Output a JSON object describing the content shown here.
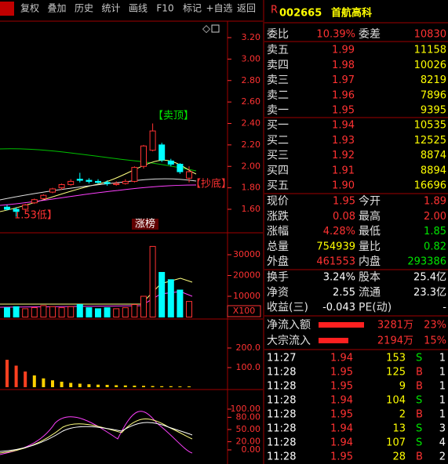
{
  "toolbar": [
    "复权",
    "叠加",
    "历史",
    "统计",
    "画线",
    "F10",
    "标记",
    "+自选",
    "返回"
  ],
  "chart": {
    "price_ticks": [
      {
        "value": 3.2,
        "label": "3.20"
      },
      {
        "value": 3.0,
        "label": "3.00"
      },
      {
        "value": 2.8,
        "label": "2.80"
      },
      {
        "value": 2.6,
        "label": "2.60"
      },
      {
        "value": 2.4,
        "label": "2.40"
      },
      {
        "value": 2.2,
        "label": "2.20"
      },
      {
        "value": 2.0,
        "label": "2.00"
      },
      {
        "value": 1.8,
        "label": "1.80"
      },
      {
        "value": 1.6,
        "label": "1.60"
      }
    ],
    "sell_top": "【卖顶】",
    "buy_bottom": "【抄底】",
    "low_label": "1.53低】",
    "badge": "涨榜",
    "candles": [
      {
        "o": 1.62,
        "h": 1.64,
        "l": 1.59,
        "c": 1.6
      },
      {
        "o": 1.6,
        "h": 1.62,
        "l": 1.53,
        "c": 1.58
      },
      {
        "o": 1.6,
        "h": 1.65,
        "l": 1.59,
        "c": 1.64
      },
      {
        "o": 1.66,
        "h": 1.7,
        "l": 1.65,
        "c": 1.69
      },
      {
        "o": 1.7,
        "h": 1.74,
        "l": 1.69,
        "c": 1.73
      },
      {
        "o": 1.76,
        "h": 1.8,
        "l": 1.75,
        "c": 1.79
      },
      {
        "o": 1.8,
        "h": 1.84,
        "l": 1.78,
        "c": 1.83
      },
      {
        "o": 1.83,
        "h": 1.88,
        "l": 1.82,
        "c": 1.86
      },
      {
        "o": 1.88,
        "h": 1.94,
        "l": 1.85,
        "c": 1.87
      },
      {
        "o": 1.87,
        "h": 1.89,
        "l": 1.84,
        "c": 1.86
      },
      {
        "o": 1.86,
        "h": 1.88,
        "l": 1.84,
        "c": 1.85
      },
      {
        "o": 1.85,
        "h": 1.87,
        "l": 1.82,
        "c": 1.84
      },
      {
        "o": 1.83,
        "h": 1.86,
        "l": 1.82,
        "c": 1.84
      },
      {
        "o": 1.84,
        "h": 1.88,
        "l": 1.83,
        "c": 1.86
      },
      {
        "o": 1.86,
        "h": 2.0,
        "l": 1.85,
        "c": 1.99
      },
      {
        "o": 2.0,
        "h": 2.2,
        "l": 1.98,
        "c": 2.19
      },
      {
        "o": 2.15,
        "h": 2.4,
        "l": 2.14,
        "c": 2.33
      },
      {
        "o": 2.2,
        "h": 2.22,
        "l": 2.04,
        "c": 2.06
      },
      {
        "o": 2.05,
        "h": 2.07,
        "l": 2.0,
        "c": 2.02
      },
      {
        "o": 2.02,
        "h": 2.03,
        "l": 1.93,
        "c": 1.95
      },
      {
        "o": 1.89,
        "h": 2.0,
        "l": 1.85,
        "c": 1.95
      }
    ],
    "volume": [
      4500,
      5000,
      4000,
      4500,
      5500,
      5000,
      4500,
      5000,
      6000,
      4500,
      4000,
      4500,
      4000,
      4500,
      6000,
      10000,
      34000,
      21500,
      18000,
      13000,
      7500
    ],
    "volume_ticks": [
      30000,
      20000,
      10000
    ],
    "volume_unit": "X100",
    "indicator": [
      140,
      110,
      80,
      60,
      45,
      35,
      28,
      22,
      18,
      15,
      13,
      12,
      10,
      9,
      8,
      7,
      6,
      5,
      5,
      4,
      4
    ],
    "indicator_ticks": [
      {
        "value": 200,
        "label": "200.0"
      },
      {
        "value": 100,
        "label": "100.0"
      }
    ],
    "kdj_ticks": [
      {
        "value": 100,
        "label": "100.00"
      },
      {
        "value": 80,
        "label": "80.00"
      },
      {
        "value": 50,
        "label": "50.00"
      },
      {
        "value": 20,
        "label": "20.00"
      },
      {
        "value": 0,
        "label": "0.00"
      }
    ]
  },
  "quote": {
    "marker": "R",
    "code": "002665",
    "name": "首航高科",
    "ratio": [
      "委比",
      "10.39%",
      "委差",
      "10830"
    ],
    "sell": [
      [
        "卖五",
        "1.99",
        "11158"
      ],
      [
        "卖四",
        "1.98",
        "10026"
      ],
      [
        "卖三",
        "1.97",
        "8219"
      ],
      [
        "卖二",
        "1.96",
        "7896"
      ],
      [
        "卖一",
        "1.95",
        "9395"
      ]
    ],
    "buy": [
      [
        "买一",
        "1.94",
        "10535"
      ],
      [
        "买二",
        "1.93",
        "12525"
      ],
      [
        "买三",
        "1.92",
        "8874"
      ],
      [
        "买四",
        "1.91",
        "8894"
      ],
      [
        "买五",
        "1.90",
        "16696"
      ]
    ],
    "stats": [
      [
        "现价",
        "1.95",
        "今开",
        "1.89"
      ],
      [
        "涨跌",
        "0.08",
        "最高",
        "2.00"
      ],
      [
        "涨幅",
        "4.28%",
        "最低",
        "1.85"
      ],
      [
        "总量",
        "754939",
        "量比",
        "0.82"
      ],
      [
        "外盘",
        "461553",
        "内盘",
        "293386"
      ]
    ],
    "finance": [
      [
        "换手",
        "3.24%",
        "股本",
        "25.4亿"
      ],
      [
        "净资",
        "2.55",
        "流通",
        "23.3亿"
      ],
      [
        "收益(三)",
        "-0.043",
        "PE(动)",
        "-"
      ]
    ],
    "flows": [
      [
        "净流入额",
        "3281万",
        "23%"
      ],
      [
        "大宗流入",
        "2194万",
        "15%"
      ]
    ],
    "ticks": [
      [
        "11:27",
        "1.94",
        "153",
        "S",
        "1"
      ],
      [
        "11:28",
        "1.95",
        "125",
        "B",
        "1"
      ],
      [
        "11:28",
        "1.95",
        "9",
        "B",
        "1"
      ],
      [
        "11:28",
        "1.94",
        "104",
        "S",
        "1"
      ],
      [
        "11:28",
        "1.95",
        "2",
        "B",
        "1"
      ],
      [
        "11:28",
        "1.94",
        "13",
        "S",
        "3"
      ],
      [
        "11:28",
        "1.94",
        "107",
        "S",
        "4"
      ],
      [
        "11:28",
        "1.95",
        "28",
        "B",
        "2"
      ]
    ]
  }
}
